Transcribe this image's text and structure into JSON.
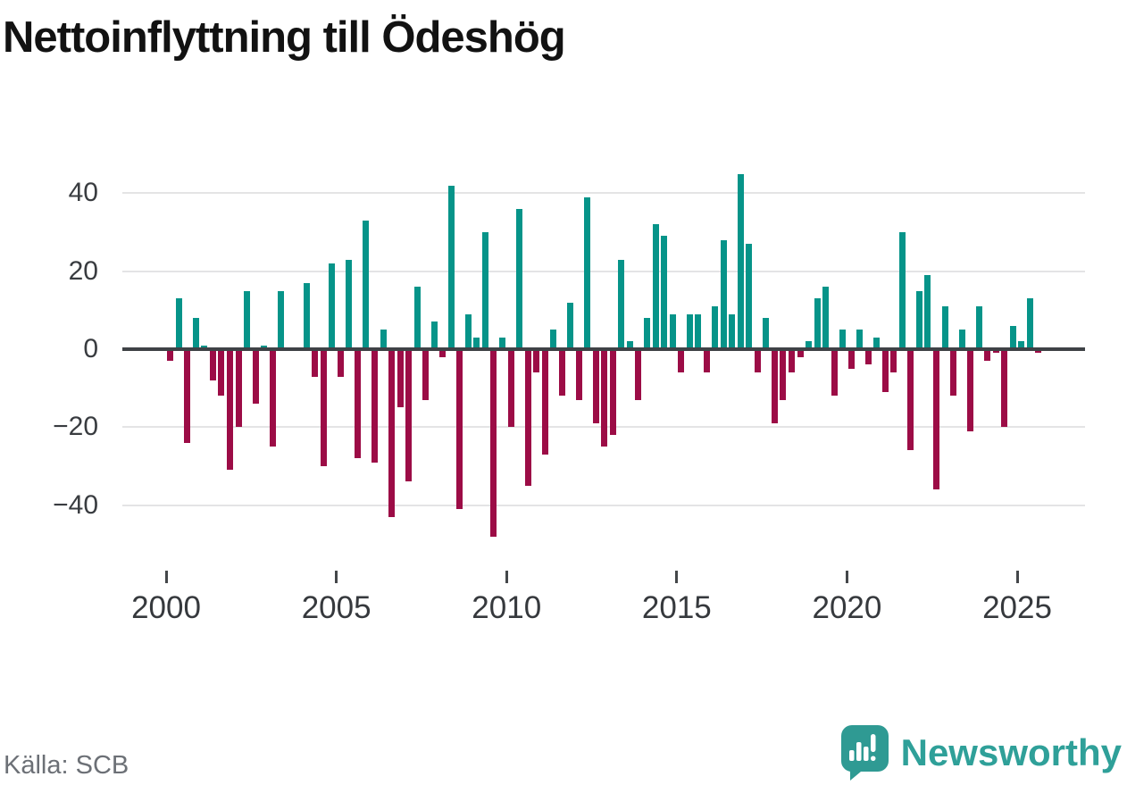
{
  "title": "Nettoinflyttning till Ödeshög",
  "source": {
    "label": "Källa: SCB"
  },
  "branding": {
    "name": "Newsworthy"
  },
  "chart_data": {
    "type": "bar",
    "title": "Nettoinflyttning till Ödeshög",
    "frequency": "quarterly",
    "start_period": "2000 Q1",
    "end_period": "2025 Q3",
    "x_tick_labels": [
      "2000",
      "2005",
      "2010",
      "2015",
      "2020",
      "2025"
    ],
    "x_tick_years": [
      2000,
      2005,
      2010,
      2015,
      2020,
      2025
    ],
    "y_ticks": [
      40,
      20,
      0,
      -20,
      -40
    ],
    "y_tick_labels": [
      "40",
      "20",
      "0",
      "−20",
      "−40"
    ],
    "ylim": [
      -50,
      47
    ],
    "grid": "horizontal",
    "positive_color": "#069489",
    "negative_color": "#9c0c46",
    "zero_line_color": "#3f4246",
    "series": [
      {
        "name": "Nettoinflyttning",
        "values": [
          -3,
          13,
          -24,
          8,
          1,
          -8,
          -12,
          -31,
          -20,
          15,
          -14,
          1,
          -25,
          15,
          0,
          0,
          17,
          -7,
          -30,
          22,
          -7,
          23,
          -28,
          33,
          -29,
          5,
          -43,
          -15,
          -34,
          16,
          -13,
          7,
          -2,
          42,
          -41,
          9,
          3,
          30,
          -48,
          3,
          -20,
          36,
          -35,
          -6,
          -27,
          5,
          -12,
          12,
          -13,
          39,
          -19,
          -25,
          -22,
          23,
          2,
          -13,
          8,
          32,
          29,
          9,
          -6,
          9,
          9,
          -6,
          11,
          28,
          9,
          45,
          27,
          -6,
          8,
          -19,
          -13,
          -6,
          -2,
          2,
          13,
          16,
          -12,
          5,
          -5,
          5,
          -4,
          3,
          -11,
          -6,
          30,
          -26,
          15,
          19,
          -36,
          11,
          -12,
          5,
          -21,
          11,
          -3,
          -1,
          -20,
          6,
          2,
          13,
          -1
        ]
      }
    ]
  }
}
